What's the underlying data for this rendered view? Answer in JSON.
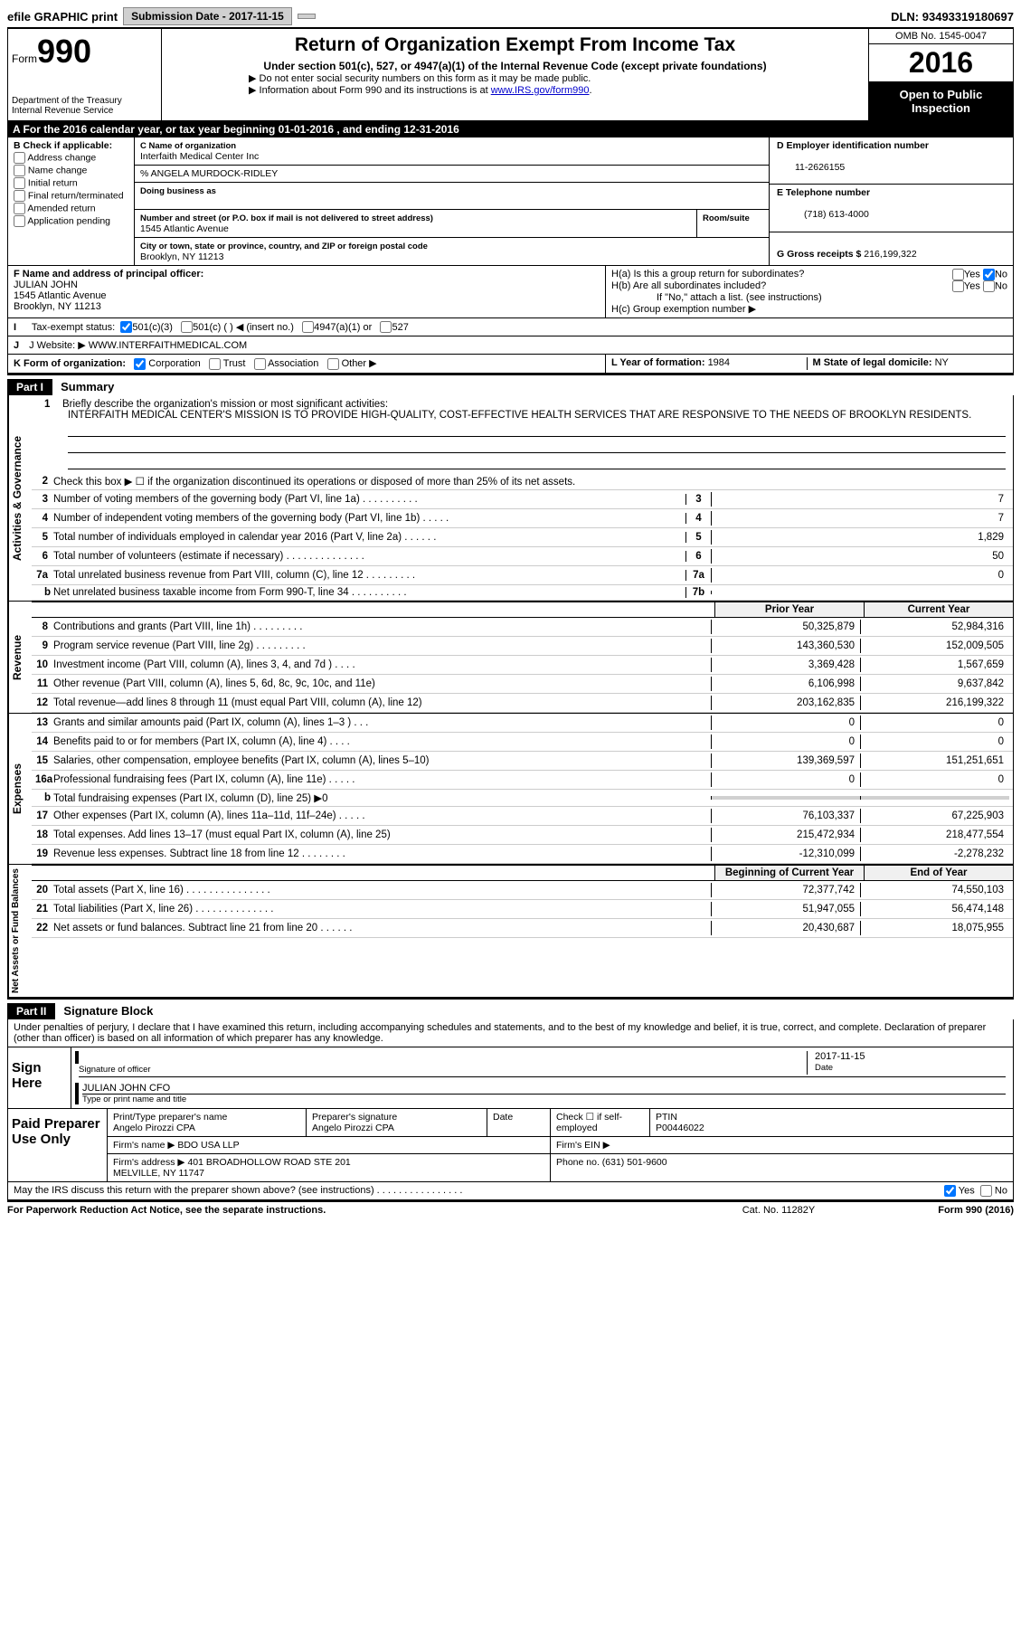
{
  "topbar": {
    "efile": "efile GRAPHIC print",
    "subdate_label": "Submission Date - ",
    "subdate": "2017-11-15",
    "dln_label": "DLN: ",
    "dln": "93493319180697"
  },
  "header": {
    "form_prefix": "Form",
    "form_num": "990",
    "dept": "Department of the Treasury\nInternal Revenue Service",
    "title": "Return of Organization Exempt From Income Tax",
    "sub": "Under section 501(c), 527, or 4947(a)(1) of the Internal Revenue Code (except private foundations)",
    "note1": "▶ Do not enter social security numbers on this form as it may be made public.",
    "note2_pre": "▶ Information about Form 990 and its instructions is at ",
    "note2_link": "www.IRS.gov/form990",
    "omb": "OMB No. 1545-0047",
    "year": "2016",
    "open": "Open to Public Inspection"
  },
  "rowA": "A  For the 2016 calendar year, or tax year beginning 01-01-2016   , and ending 12-31-2016",
  "sectionB": {
    "hdr": "B Check if applicable:",
    "items": [
      "Address change",
      "Name change",
      "Initial return",
      "Final return/terminated",
      "Amended return",
      "Application pending"
    ]
  },
  "sectionC": {
    "name_lbl": "C Name of organization",
    "name": "Interfaith Medical Center Inc",
    "care": "% ANGELA MURDOCK-RIDLEY",
    "dba_lbl": "Doing business as",
    "addr_lbl": "Number and street (or P.O. box if mail is not delivered to street address)",
    "room_lbl": "Room/suite",
    "addr": "1545 Atlantic Avenue",
    "city_lbl": "City or town, state or province, country, and ZIP or foreign postal code",
    "city": "Brooklyn, NY  11213"
  },
  "sectionD": {
    "ein_lbl": "D Employer identification number",
    "ein": "11-2626155",
    "tel_lbl": "E Telephone number",
    "tel": "(718) 613-4000",
    "gross_lbl": "G Gross receipts $ ",
    "gross": "216,199,322"
  },
  "sectionF": {
    "lbl": "F Name and address of principal officer:",
    "name": "JULIAN JOHN",
    "addr1": "1545 Atlantic Avenue",
    "addr2": "Brooklyn, NY  11213"
  },
  "sectionH": {
    "ha": "H(a)  Is this a group return for subordinates?",
    "hb": "H(b)  Are all subordinates included?",
    "hb_note": "If \"No,\" attach a list. (see instructions)",
    "hc": "H(c)  Group exemption number ▶"
  },
  "rowI": {
    "lbl": "I  Tax-exempt status:",
    "o1": "501(c)(3)",
    "o2": "501(c) (   ) ◀ (insert no.)",
    "o3": "4947(a)(1) or",
    "o4": "527"
  },
  "rowJ": {
    "lbl": "J  Website: ▶",
    "val": "WWW.INTERFAITHMEDICAL.COM"
  },
  "rowK": {
    "lbl": "K Form of organization:",
    "opts": [
      "Corporation",
      "Trust",
      "Association",
      "Other ▶"
    ],
    "year_lbl": "L Year of formation: ",
    "year": "1984",
    "state_lbl": "M State of legal domicile: ",
    "state": "NY"
  },
  "part1": {
    "hdr": "Part I",
    "title": "Summary"
  },
  "p1_1": {
    "ln": "1",
    "desc": "Briefly describe the organization's mission or most significant activities:",
    "text": "INTERFAITH MEDICAL CENTER'S MISSION IS TO PROVIDE HIGH-QUALITY, COST-EFFECTIVE HEALTH SERVICES THAT ARE RESPONSIVE TO THE NEEDS OF BROOKLYN RESIDENTS."
  },
  "p1_lines_gov": [
    {
      "ln": "2",
      "desc": "Check this box ▶ ☐  if the organization discontinued its operations or disposed of more than 25% of its net assets."
    },
    {
      "ln": "3",
      "desc": "Number of voting members of the governing body (Part VI, line 1a)  .   .   .   .   .   .   .   .   .   .",
      "num": "3",
      "val": "7"
    },
    {
      "ln": "4",
      "desc": "Number of independent voting members of the governing body (Part VI, line 1b)  .   .   .   .   .",
      "num": "4",
      "val": "7"
    },
    {
      "ln": "5",
      "desc": "Total number of individuals employed in calendar year 2016 (Part V, line 2a)  .   .   .   .   .   .",
      "num": "5",
      "val": "1,829"
    },
    {
      "ln": "6",
      "desc": "Total number of volunteers (estimate if necessary)   .   .   .   .   .   .   .   .   .   .   .   .   .   .",
      "num": "6",
      "val": "50"
    },
    {
      "ln": "7a",
      "desc": "Total unrelated business revenue from Part VIII, column (C), line 12   .   .   .   .   .   .   .   .   .",
      "num": "7a",
      "val": "0"
    },
    {
      "ln": "b",
      "desc": "Net unrelated business taxable income from Form 990-T, line 34   .   .   .   .   .   .   .   .   .   .",
      "num": "7b",
      "val": "",
      "indent": true
    }
  ],
  "cols": {
    "prior": "Prior Year",
    "current": "Current Year"
  },
  "revenue": [
    {
      "ln": "8",
      "desc": "Contributions and grants (Part VIII, line 1h)   .   .   .   .   .   .   .   .   .",
      "p": "50,325,879",
      "c": "52,984,316"
    },
    {
      "ln": "9",
      "desc": "Program service revenue (Part VIII, line 2g)   .   .   .   .   .   .   .   .   .",
      "p": "143,360,530",
      "c": "152,009,505"
    },
    {
      "ln": "10",
      "desc": "Investment income (Part VIII, column (A), lines 3, 4, and 7d )   .   .   .   .",
      "p": "3,369,428",
      "c": "1,567,659"
    },
    {
      "ln": "11",
      "desc": "Other revenue (Part VIII, column (A), lines 5, 6d, 8c, 9c, 10c, and 11e)",
      "p": "6,106,998",
      "c": "9,637,842"
    },
    {
      "ln": "12",
      "desc": "Total revenue—add lines 8 through 11 (must equal Part VIII, column (A), line 12)",
      "p": "203,162,835",
      "c": "216,199,322"
    }
  ],
  "expenses": [
    {
      "ln": "13",
      "desc": "Grants and similar amounts paid (Part IX, column (A), lines 1–3 )   .   .   .",
      "p": "0",
      "c": "0"
    },
    {
      "ln": "14",
      "desc": "Benefits paid to or for members (Part IX, column (A), line 4)   .   .   .   .",
      "p": "0",
      "c": "0"
    },
    {
      "ln": "15",
      "desc": "Salaries, other compensation, employee benefits (Part IX, column (A), lines 5–10)",
      "p": "139,369,597",
      "c": "151,251,651"
    },
    {
      "ln": "16a",
      "desc": "Professional fundraising fees (Part IX, column (A), line 11e)   .   .   .   .   .",
      "p": "0",
      "c": "0"
    },
    {
      "ln": "b",
      "desc": "Total fundraising expenses (Part IX, column (D), line 25) ▶0",
      "p": "grey",
      "c": "grey",
      "indent": true
    },
    {
      "ln": "17",
      "desc": "Other expenses (Part IX, column (A), lines 11a–11d, 11f–24e)   .   .   .   .   .",
      "p": "76,103,337",
      "c": "67,225,903"
    },
    {
      "ln": "18",
      "desc": "Total expenses. Add lines 13–17 (must equal Part IX, column (A), line 25)",
      "p": "215,472,934",
      "c": "218,477,554"
    },
    {
      "ln": "19",
      "desc": "Revenue less expenses. Subtract line 18 from line 12 .   .   .   .   .   .   .   .",
      "p": "-12,310,099",
      "c": "-2,278,232"
    }
  ],
  "cols2": {
    "begin": "Beginning of Current Year",
    "end": "End of Year"
  },
  "netassets": [
    {
      "ln": "20",
      "desc": "Total assets (Part X, line 16)  .   .   .   .   .   .   .   .   .   .   .   .   .   .   .",
      "p": "72,377,742",
      "c": "74,550,103"
    },
    {
      "ln": "21",
      "desc": "Total liabilities (Part X, line 26)  .   .   .   .   .   .   .   .   .   .   .   .   .   .",
      "p": "51,947,055",
      "c": "56,474,148"
    },
    {
      "ln": "22",
      "desc": "Net assets or fund balances. Subtract line 21 from line 20  .   .   .   .   .   .",
      "p": "20,430,687",
      "c": "18,075,955"
    }
  ],
  "part2": {
    "hdr": "Part II",
    "title": "Signature Block"
  },
  "penalties": "Under penalties of perjury, I declare that I have examined this return, including accompanying schedules and statements, and to the best of my knowledge and belief, it is true, correct, and complete. Declaration of preparer (other than officer) is based on all information of which preparer has any knowledge.",
  "sign": {
    "label": "Sign Here",
    "sig_lbl": "Signature of officer",
    "date": "2017-11-15",
    "date_lbl": "Date",
    "name": "JULIAN JOHN  CFO",
    "name_lbl": "Type or print name and title"
  },
  "prep": {
    "label": "Paid Preparer Use Only",
    "name_lbl": "Print/Type preparer's name",
    "name": "Angelo Pirozzi CPA",
    "sig_lbl": "Preparer's signature",
    "sig": "Angelo Pirozzi CPA",
    "date_lbl": "Date",
    "self_lbl": "Check ☐ if self-employed",
    "ptin_lbl": "PTIN",
    "ptin": "P00446022",
    "firm_lbl": "Firm's name      ▶",
    "firm": "BDO USA LLP",
    "ein_lbl": "Firm's EIN ▶",
    "addr_lbl": "Firm's address ▶",
    "addr": "401 BROADHOLLOW ROAD STE 201\nMELVILLE, NY  11747",
    "phone_lbl": "Phone no. ",
    "phone": "(631) 501-9600"
  },
  "discuss": "May the IRS discuss this return with the preparer shown above? (see instructions)   .   .   .   .   .   .   .   .   .   .   .   .   .   .   .   .",
  "footer": {
    "pra": "For Paperwork Reduction Act Notice, see the separate instructions.",
    "cat": "Cat. No. 11282Y",
    "form": "Form 990 (2016)"
  }
}
